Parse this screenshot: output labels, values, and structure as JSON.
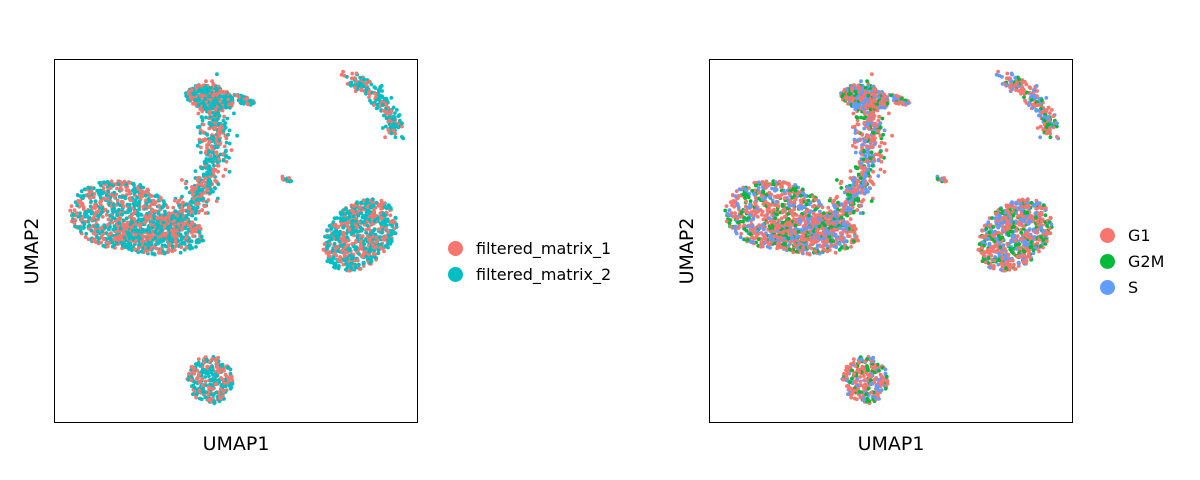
{
  "chart_data": [
    {
      "type": "scatter",
      "title": "",
      "xlabel": "UMAP1",
      "ylabel": "UMAP2",
      "color_by": "sample",
      "legend_position": "right",
      "grid": false,
      "ticks": false,
      "legend": [
        {
          "label": "filtered_matrix_1",
          "color": "#F8766D"
        },
        {
          "label": "filtered_matrix_2",
          "color": "#00BFC4"
        }
      ]
    },
    {
      "type": "scatter",
      "title": "",
      "xlabel": "UMAP1",
      "ylabel": "UMAP2",
      "color_by": "cell_cycle_phase",
      "legend_position": "right",
      "grid": false,
      "ticks": false,
      "legend": [
        {
          "label": "G1",
          "color": "#F8766D"
        },
        {
          "label": "G2M",
          "color": "#00BA38"
        },
        {
          "label": "S",
          "color": "#619CFF"
        }
      ]
    }
  ]
}
